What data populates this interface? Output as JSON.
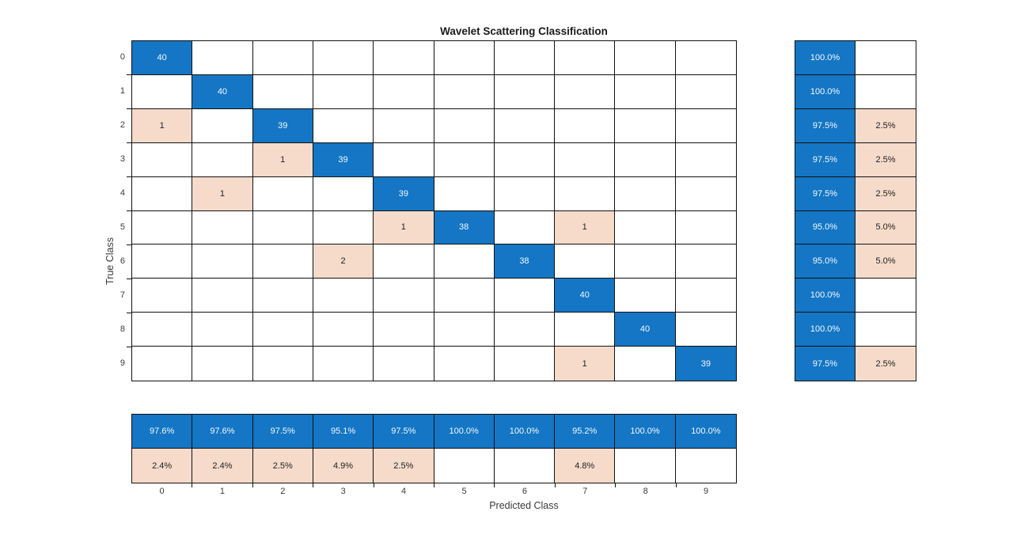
{
  "title": "Wavelet Scattering Classification",
  "xlabel": "Predicted Class",
  "ylabel": "True Class",
  "classes": [
    "0",
    "1",
    "2",
    "3",
    "4",
    "5",
    "6",
    "7",
    "8",
    "9"
  ],
  "colors": {
    "diagonal": "#1476c4",
    "off_diagonal": "#f6dbca",
    "grid_line": "#111111",
    "title_text": "#1a1a1a",
    "label_text": "#3a3a3a",
    "light_text": "#f4f9fd",
    "dark_text": "#1f1f1f"
  },
  "chart_data": {
    "type": "heatmap",
    "title": "Wavelet Scattering Classification",
    "xlabel": "Predicted Class",
    "ylabel": "True Class",
    "categories": [
      "0",
      "1",
      "2",
      "3",
      "4",
      "5",
      "6",
      "7",
      "8",
      "9"
    ],
    "matrix": [
      [
        40,
        0,
        0,
        0,
        0,
        0,
        0,
        0,
        0,
        0
      ],
      [
        0,
        40,
        0,
        0,
        0,
        0,
        0,
        0,
        0,
        0
      ],
      [
        1,
        0,
        39,
        0,
        0,
        0,
        0,
        0,
        0,
        0
      ],
      [
        0,
        0,
        1,
        39,
        0,
        0,
        0,
        0,
        0,
        0
      ],
      [
        0,
        1,
        0,
        0,
        39,
        0,
        0,
        0,
        0,
        0
      ],
      [
        0,
        0,
        0,
        0,
        1,
        38,
        0,
        1,
        0,
        0
      ],
      [
        0,
        0,
        0,
        2,
        0,
        0,
        38,
        0,
        0,
        0
      ],
      [
        0,
        0,
        0,
        0,
        0,
        0,
        0,
        40,
        0,
        0
      ],
      [
        0,
        0,
        0,
        0,
        0,
        0,
        0,
        0,
        40,
        0
      ],
      [
        0,
        0,
        0,
        0,
        0,
        0,
        0,
        1,
        0,
        39
      ]
    ],
    "row_summary": {
      "correct": [
        "100.0%",
        "100.0%",
        "97.5%",
        "97.5%",
        "97.5%",
        "95.0%",
        "95.0%",
        "100.0%",
        "100.0%",
        "97.5%"
      ],
      "incorrect": [
        "",
        "",
        "2.5%",
        "2.5%",
        "2.5%",
        "5.0%",
        "5.0%",
        "",
        "",
        "2.5%"
      ]
    },
    "column_summary": {
      "correct": [
        "97.6%",
        "97.6%",
        "97.5%",
        "95.1%",
        "97.5%",
        "100.0%",
        "100.0%",
        "95.2%",
        "100.0%",
        "100.0%"
      ],
      "incorrect": [
        "2.4%",
        "2.4%",
        "2.5%",
        "4.9%",
        "2.5%",
        "",
        "",
        "4.8%",
        "",
        ""
      ]
    }
  }
}
